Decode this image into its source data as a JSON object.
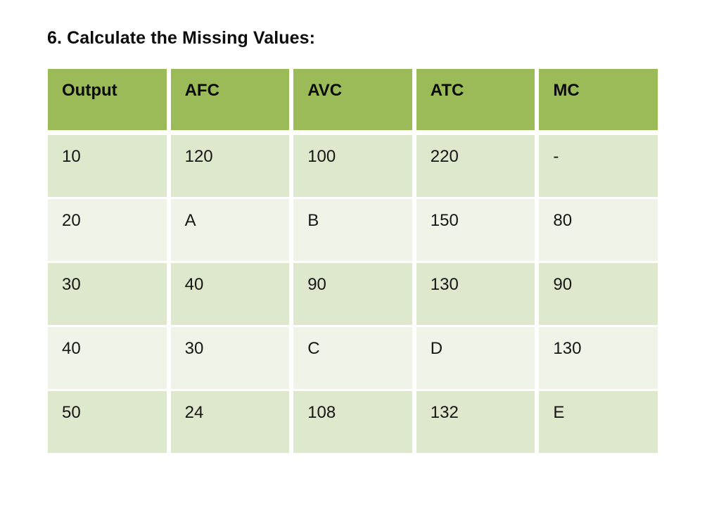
{
  "page": {
    "title": "6. Calculate the Missing Values:"
  },
  "table": {
    "columns": [
      "Output",
      "AFC",
      "AVC",
      "ATC",
      "MC"
    ],
    "rows": [
      [
        "10",
        "120",
        "100",
        "220",
        "-"
      ],
      [
        "20",
        "A",
        "B",
        "150",
        "80"
      ],
      [
        "30",
        "40",
        "90",
        "130",
        "90"
      ],
      [
        "40",
        "30",
        "C",
        "D",
        "130"
      ],
      [
        "50",
        "24",
        "108",
        "132",
        "E"
      ]
    ],
    "colors": {
      "header_bg": "#9bbb59",
      "row_band_dark": "#dde8cc",
      "row_band_light": "#eff3e8",
      "text": "#161616",
      "page_bg": "#ffffff"
    }
  }
}
